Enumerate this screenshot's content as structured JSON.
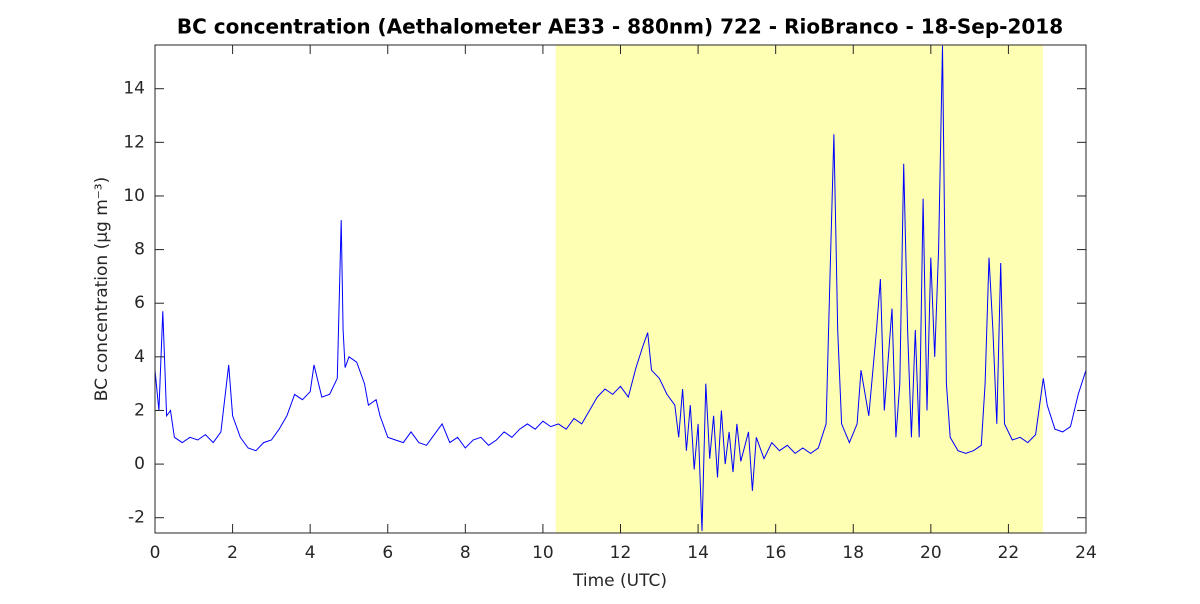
{
  "chart_data": {
    "type": "line",
    "title": "BC concentration (Aethalometer AE33 - 880nm) 722 - RioBranco - 18-Sep-2018",
    "xlabel": "Time (UTC)",
    "ylabel": "BC concentration (μg m⁻³)",
    "xlim": [
      0,
      24
    ],
    "xticks": [
      0,
      2,
      4,
      6,
      8,
      10,
      12,
      14,
      16,
      18,
      20,
      22,
      24
    ],
    "ylim": [
      -2.57,
      15.63
    ],
    "yticks": [
      -2,
      0,
      2,
      4,
      6,
      8,
      10,
      12,
      14
    ],
    "highlight_xrange": [
      10.33,
      22.89
    ],
    "highlight_color": "#ffffb3",
    "series": [
      {
        "color": "#0000ff",
        "x": [
          0,
          0.1,
          0.2,
          0.3,
          0.4,
          0.5,
          0.7,
          0.9,
          1.1,
          1.3,
          1.5,
          1.7,
          1.9,
          2.0,
          2.2,
          2.4,
          2.6,
          2.8,
          3.0,
          3.2,
          3.4,
          3.6,
          3.8,
          4.0,
          4.1,
          4.3,
          4.5,
          4.7,
          4.8,
          4.85,
          4.9,
          5.0,
          5.2,
          5.4,
          5.5,
          5.7,
          5.8,
          6.0,
          6.2,
          6.4,
          6.6,
          6.8,
          7.0,
          7.2,
          7.4,
          7.6,
          7.8,
          8.0,
          8.2,
          8.4,
          8.6,
          8.8,
          9.0,
          9.2,
          9.4,
          9.6,
          9.8,
          10.0,
          10.2,
          10.4,
          10.6,
          10.8,
          11.0,
          11.2,
          11.4,
          11.6,
          11.8,
          12.0,
          12.2,
          12.4,
          12.6,
          12.7,
          12.8,
          13.0,
          13.2,
          13.4,
          13.5,
          13.6,
          13.7,
          13.8,
          13.9,
          14.0,
          14.1,
          14.2,
          14.3,
          14.4,
          14.5,
          14.6,
          14.7,
          14.8,
          14.9,
          15.0,
          15.1,
          15.3,
          15.4,
          15.5,
          15.7,
          15.9,
          16.1,
          16.3,
          16.5,
          16.7,
          16.9,
          17.1,
          17.3,
          17.4,
          17.5,
          17.6,
          17.7,
          17.9,
          18.1,
          18.2,
          18.4,
          18.6,
          18.7,
          18.8,
          19.0,
          19.1,
          19.2,
          19.3,
          19.4,
          19.5,
          19.6,
          19.7,
          19.8,
          19.9,
          20.0,
          20.1,
          20.2,
          20.3,
          20.4,
          20.5,
          20.7,
          20.9,
          21.1,
          21.3,
          21.4,
          21.5,
          21.6,
          21.7,
          21.8,
          21.9,
          22.1,
          22.3,
          22.5,
          22.7,
          22.9,
          23.0,
          23.2,
          23.4,
          23.6,
          23.8,
          24.0
        ],
        "values": [
          3.5,
          2.0,
          5.7,
          1.8,
          2.0,
          1.0,
          0.8,
          1.0,
          0.9,
          1.1,
          0.8,
          1.2,
          3.7,
          1.8,
          1.0,
          0.6,
          0.5,
          0.8,
          0.9,
          1.3,
          1.8,
          2.6,
          2.4,
          2.7,
          3.7,
          2.5,
          2.6,
          3.2,
          9.1,
          5.0,
          3.6,
          4.0,
          3.8,
          3.0,
          2.2,
          2.4,
          1.8,
          1.0,
          0.9,
          0.8,
          1.2,
          0.8,
          0.7,
          1.1,
          1.5,
          0.8,
          1.0,
          0.6,
          0.9,
          1.0,
          0.7,
          0.9,
          1.2,
          1.0,
          1.3,
          1.5,
          1.3,
          1.6,
          1.4,
          1.5,
          1.3,
          1.7,
          1.5,
          2.0,
          2.5,
          2.8,
          2.6,
          2.9,
          2.5,
          3.6,
          4.5,
          4.9,
          3.5,
          3.2,
          2.6,
          2.2,
          1.0,
          2.8,
          0.5,
          2.2,
          -0.2,
          1.5,
          -2.5,
          3.0,
          0.2,
          1.8,
          -0.5,
          2.0,
          0.0,
          1.2,
          -0.3,
          1.5,
          0.1,
          1.2,
          -1.0,
          1.0,
          0.2,
          0.8,
          0.5,
          0.7,
          0.4,
          0.6,
          0.4,
          0.6,
          1.5,
          7.0,
          12.3,
          5.0,
          1.5,
          0.8,
          1.5,
          3.5,
          1.8,
          5.0,
          6.9,
          2.0,
          5.8,
          1.0,
          3.0,
          11.2,
          5.0,
          1.0,
          5.0,
          1.0,
          9.9,
          2.0,
          7.7,
          4.0,
          8.0,
          15.6,
          3.0,
          1.0,
          0.5,
          0.4,
          0.5,
          0.7,
          3.0,
          7.7,
          5.0,
          1.5,
          7.5,
          1.5,
          0.9,
          1.0,
          0.8,
          1.1,
          3.2,
          2.2,
          1.3,
          1.2,
          1.4,
          2.6,
          3.5
        ]
      }
    ]
  }
}
